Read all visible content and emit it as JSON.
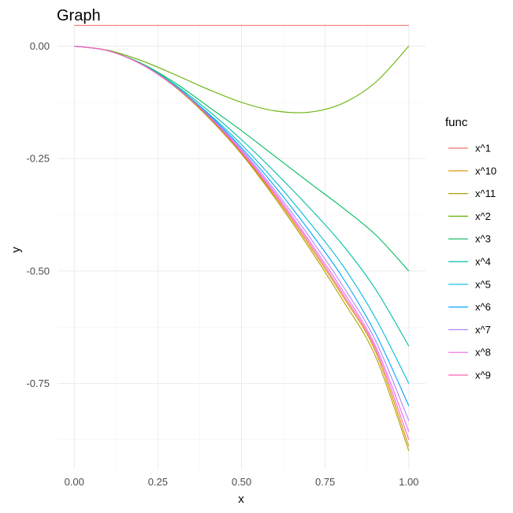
{
  "chart_data": {
    "type": "line",
    "title": "Graph",
    "xlabel": "x",
    "ylabel": "y",
    "xlim": [
      -0.05,
      1.05
    ],
    "ylim": [
      -0.94,
      0.05
    ],
    "x_ticks": [
      0.0,
      0.25,
      0.5,
      0.75,
      1.0
    ],
    "x_tick_labels": [
      "0.00",
      "0.25",
      "0.50",
      "0.75",
      "1.00"
    ],
    "y_ticks": [
      0.0,
      -0.25,
      -0.5,
      -0.75
    ],
    "y_tick_labels": [
      "0.00",
      "-0.25",
      "-0.50",
      "-0.75"
    ],
    "grid": true,
    "legend": {
      "title": "func",
      "position": "right"
    },
    "series": [
      {
        "name": "x^1",
        "color": "#F8766D",
        "x": [
          0,
          1
        ],
        "y": [
          0.046,
          0.046
        ]
      },
      {
        "name": "x^10",
        "color": "#DB8E00",
        "x": [
          0,
          0.1,
          0.2,
          0.3,
          0.4,
          0.5,
          0.6,
          0.7,
          0.8,
          0.9,
          1.0
        ],
        "y": [
          0,
          -0.01,
          -0.04,
          -0.089,
          -0.156,
          -0.238,
          -0.334,
          -0.44,
          -0.553,
          -0.678,
          -0.89
        ]
      },
      {
        "name": "x^11",
        "color": "#AEA200",
        "x": [
          0,
          0.1,
          0.2,
          0.3,
          0.4,
          0.5,
          0.6,
          0.7,
          0.8,
          0.9,
          1.0
        ],
        "y": [
          0,
          -0.01,
          -0.04,
          -0.09,
          -0.158,
          -0.24,
          -0.338,
          -0.446,
          -0.562,
          -0.689,
          -0.9
        ]
      },
      {
        "name": "x^2",
        "color": "#64B200",
        "x": [
          0,
          0.1,
          0.2,
          0.3,
          0.4,
          0.5,
          0.6,
          0.7,
          0.8,
          0.9,
          1.0
        ],
        "y": [
          0,
          -0.009,
          -0.032,
          -0.063,
          -0.096,
          -0.125,
          -0.144,
          -0.147,
          -0.128,
          -0.081,
          0.0
        ]
      },
      {
        "name": "x^3",
        "color": "#00BD5C",
        "x": [
          0,
          0.1,
          0.2,
          0.3,
          0.4,
          0.5,
          0.6,
          0.7,
          0.8,
          0.9,
          1.0
        ],
        "y": [
          0,
          -0.01,
          -0.038,
          -0.081,
          -0.134,
          -0.188,
          -0.245,
          -0.302,
          -0.358,
          -0.419,
          -0.5
        ]
      },
      {
        "name": "x^4",
        "color": "#00C1A7",
        "x": [
          0,
          0.1,
          0.2,
          0.3,
          0.4,
          0.5,
          0.6,
          0.7,
          0.8,
          0.9,
          1.0
        ],
        "y": [
          0,
          -0.01,
          -0.039,
          -0.085,
          -0.143,
          -0.208,
          -0.28,
          -0.357,
          -0.44,
          -0.54,
          -0.667
        ]
      },
      {
        "name": "x^5",
        "color": "#00BADE",
        "x": [
          0,
          0.1,
          0.2,
          0.3,
          0.4,
          0.5,
          0.6,
          0.7,
          0.8,
          0.9,
          1.0
        ],
        "y": [
          0,
          -0.01,
          -0.04,
          -0.087,
          -0.149,
          -0.219,
          -0.3,
          -0.389,
          -0.485,
          -0.604,
          -0.75
        ]
      },
      {
        "name": "x^6",
        "color": "#00A6FF",
        "x": [
          0,
          0.1,
          0.2,
          0.3,
          0.4,
          0.5,
          0.6,
          0.7,
          0.8,
          0.9,
          1.0
        ],
        "y": [
          0,
          -0.01,
          -0.04,
          -0.088,
          -0.151,
          -0.226,
          -0.312,
          -0.408,
          -0.512,
          -0.638,
          -0.8
        ]
      },
      {
        "name": "x^7",
        "color": "#B385FF",
        "x": [
          0,
          0.1,
          0.2,
          0.3,
          0.4,
          0.5,
          0.6,
          0.7,
          0.8,
          0.9,
          1.0
        ],
        "y": [
          0,
          -0.01,
          -0.04,
          -0.089,
          -0.153,
          -0.23,
          -0.321,
          -0.421,
          -0.53,
          -0.654,
          -0.833
        ]
      },
      {
        "name": "x^8",
        "color": "#EF67EB",
        "x": [
          0,
          0.1,
          0.2,
          0.3,
          0.4,
          0.5,
          0.6,
          0.7,
          0.8,
          0.9,
          1.0
        ],
        "y": [
          0,
          -0.01,
          -0.04,
          -0.089,
          -0.154,
          -0.233,
          -0.326,
          -0.43,
          -0.541,
          -0.666,
          -0.857
        ]
      },
      {
        "name": "x^9",
        "color": "#FF63B6",
        "x": [
          0,
          0.1,
          0.2,
          0.3,
          0.4,
          0.5,
          0.6,
          0.7,
          0.8,
          0.9,
          1.0
        ],
        "y": [
          0,
          -0.01,
          -0.04,
          -0.089,
          -0.155,
          -0.236,
          -0.33,
          -0.435,
          -0.548,
          -0.672,
          -0.875
        ]
      }
    ]
  }
}
